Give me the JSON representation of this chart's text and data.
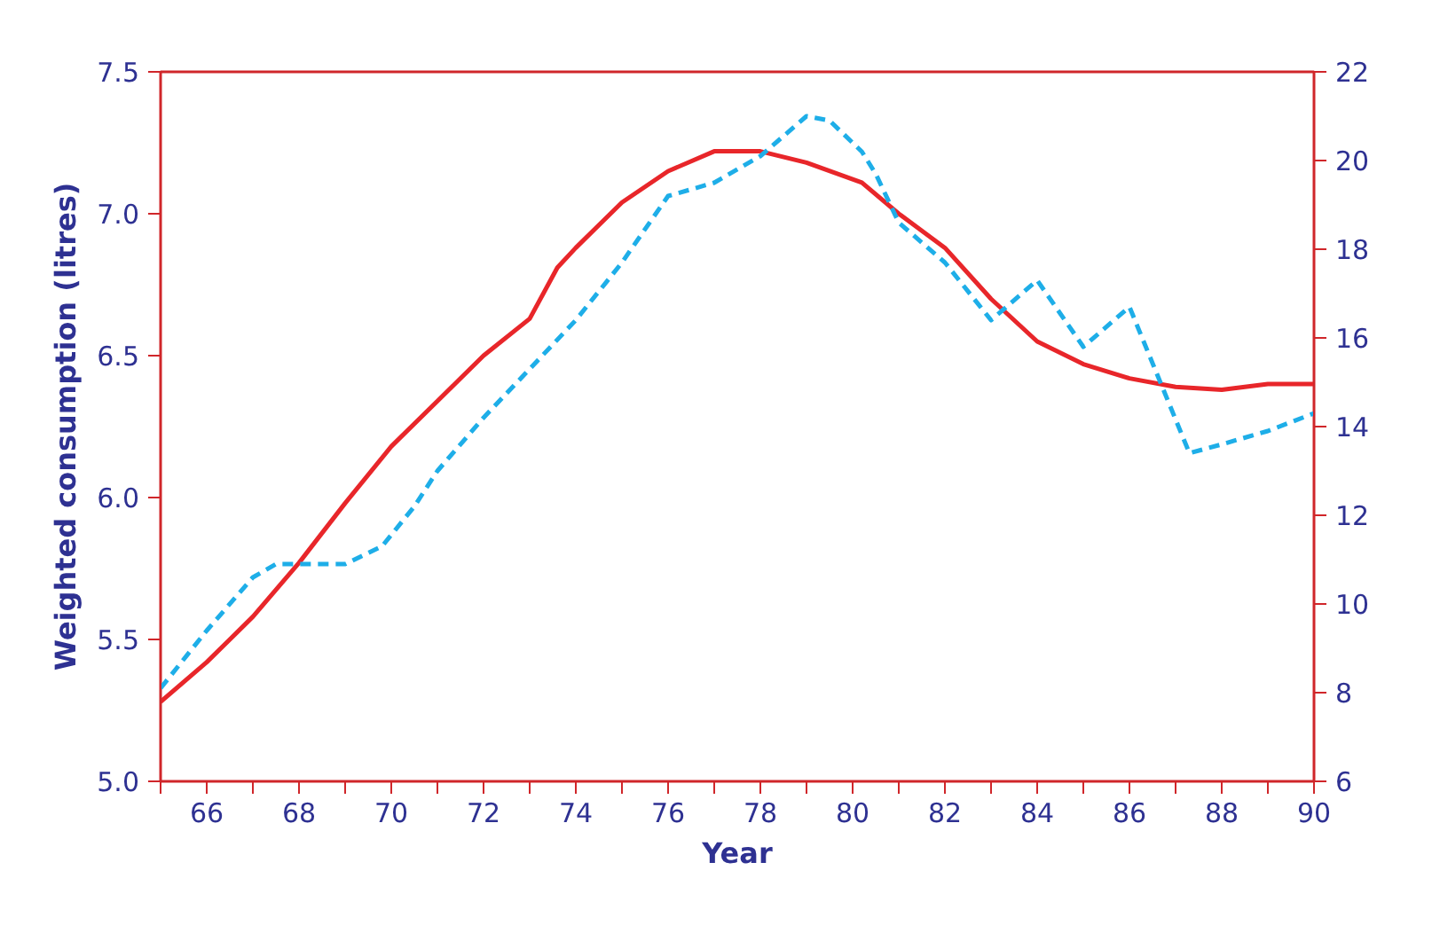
{
  "chart_data": {
    "type": "line",
    "xlabel": "Year",
    "ylabel": "Weighted consumption (litres)",
    "xlim": [
      65,
      90
    ],
    "ylim": [
      5.0,
      7.5
    ],
    "y2lim": [
      6,
      22
    ],
    "xticks": [
      {
        "value": 65,
        "label": null
      },
      66,
      {
        "value": 67,
        "label": null
      },
      68,
      {
        "value": 69,
        "label": null
      },
      70,
      {
        "value": 71,
        "label": null
      },
      72,
      {
        "value": 73,
        "label": null
      },
      74,
      {
        "value": 75,
        "label": null
      },
      76,
      {
        "value": 77,
        "label": null
      },
      78,
      {
        "value": 79,
        "label": null
      },
      80,
      {
        "value": 81,
        "label": null
      },
      82,
      {
        "value": 83,
        "label": null
      },
      84,
      {
        "value": 85,
        "label": null
      },
      86,
      {
        "value": 87,
        "label": null
      },
      88,
      {
        "value": 89,
        "label": null
      },
      90
    ],
    "yticks": [
      {
        "value": 5.0,
        "label": "5.0"
      },
      5.5,
      {
        "value": 6.0,
        "label": "6.0"
      },
      6.5,
      {
        "value": 7.0,
        "label": "7.0"
      },
      7.5
    ],
    "y2ticks": [
      6,
      8,
      10,
      12,
      14,
      16,
      18,
      20,
      22
    ],
    "grid": false,
    "marker": "none",
    "series": [
      {
        "color": "#e8262a",
        "line_style": "solid",
        "x": [
          65,
          66,
          67,
          68,
          69,
          70,
          71,
          72,
          73,
          73.6,
          74,
          75,
          76,
          77,
          78,
          79,
          80.2,
          81,
          82,
          83,
          84,
          85,
          86,
          87,
          88,
          89,
          90
        ],
        "values": [
          5.28,
          5.42,
          5.58,
          5.77,
          5.98,
          6.18,
          6.34,
          6.5,
          6.63,
          6.81,
          6.88,
          7.04,
          7.15,
          7.22,
          7.22,
          7.18,
          7.11,
          7.0,
          6.88,
          6.7,
          6.55,
          6.47,
          6.42,
          6.39,
          6.38,
          6.4,
          6.4
        ]
      },
      {
        "color": "#1eaee8",
        "line_style": "dashed",
        "axis": "y2",
        "x": [
          65,
          66,
          67,
          67.5,
          68,
          69,
          69.8,
          70.5,
          71,
          72,
          73,
          74,
          75,
          76,
          77,
          78,
          79,
          79.5,
          80.2,
          80.5,
          81,
          82,
          83,
          84,
          85,
          86,
          87.3,
          88,
          89,
          90
        ],
        "values": [
          8.1,
          9.4,
          10.6,
          10.9,
          10.9,
          10.9,
          11.3,
          12.2,
          13.0,
          14.2,
          15.3,
          16.4,
          17.7,
          19.2,
          19.5,
          20.1,
          21.0,
          20.9,
          20.2,
          19.7,
          18.6,
          17.7,
          16.4,
          17.3,
          15.8,
          16.7,
          13.4,
          13.6,
          13.9,
          14.3
        ]
      }
    ]
  }
}
